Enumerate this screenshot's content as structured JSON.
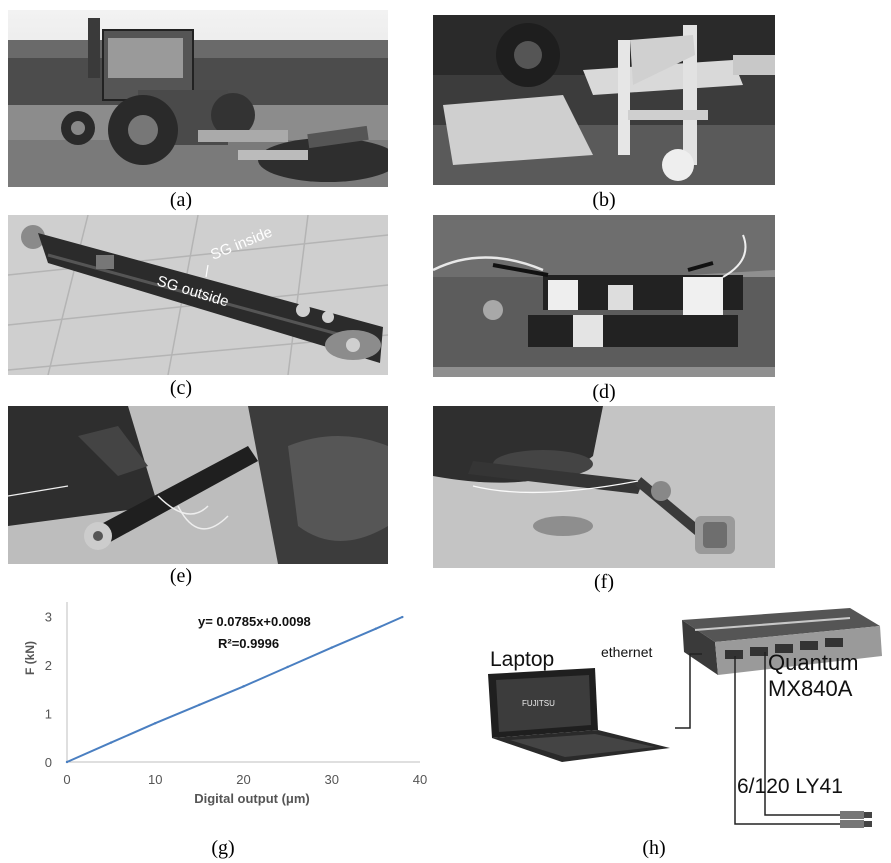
{
  "captions": {
    "a": "(a)",
    "b": "(b)",
    "c": "(c)",
    "d": "(d)",
    "e": "(e)",
    "f": "(f)",
    "g": "(g)",
    "h": "(h)"
  },
  "photo_c": {
    "sg_inside": "SG inside",
    "sg_outside": "SG outside"
  },
  "chart_data": {
    "type": "line",
    "xlabel": "Digital output (μm)",
    "ylabel": "F (kN)",
    "xlim": [
      0,
      40
    ],
    "ylim": [
      0,
      3.3
    ],
    "xticks": [
      "0",
      "10",
      "20",
      "30",
      "40"
    ],
    "yticks": [
      "0",
      "1",
      "2",
      "3"
    ],
    "grid": false,
    "equation": "y= 0.0785x+0.0098",
    "r2": "R²=0.9996",
    "series": [
      {
        "x": [
          0,
          5,
          10,
          15,
          20,
          25,
          30,
          35,
          38
        ],
        "y": [
          0.0,
          0.4,
          0.8,
          1.18,
          1.56,
          1.96,
          2.36,
          2.75,
          2.99
        ],
        "color": "#4a7fc1"
      }
    ]
  },
  "diagram_h": {
    "device_line1": "Quantum",
    "device_line2": "MX840A",
    "laptop_label": "Laptop",
    "link_label": "ethernet",
    "sensor_label": "6/120 LY41",
    "laptop_brand": "FUJITSU"
  }
}
